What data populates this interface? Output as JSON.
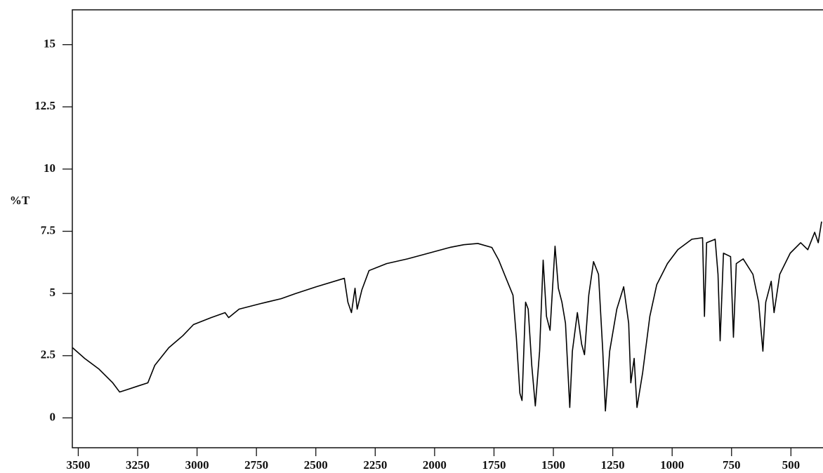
{
  "chart_data": {
    "type": "line",
    "ylabel": "%T",
    "xlim": [
      3525,
      365
    ],
    "ylim": [
      -1.2,
      16.4
    ],
    "xticks": [
      3500,
      3250,
      3000,
      2750,
      2500,
      2250,
      2000,
      1750,
      1500,
      1250,
      1000,
      750,
      500
    ],
    "yticks": [
      0,
      2.5,
      5,
      7.5,
      10,
      12.5,
      15
    ],
    "series": [
      {
        "color": "#000000",
        "x": [
          3524,
          3473,
          3414,
          3355,
          3326,
          3296,
          3252,
          3207,
          3178,
          3119,
          3060,
          3015,
          2941,
          2882,
          2867,
          2823,
          2734,
          2646,
          2587,
          2498,
          2380,
          2365,
          2350,
          2335,
          2326,
          2306,
          2276,
          2202,
          2114,
          2025,
          1936,
          1877,
          1818,
          1759,
          1730,
          1700,
          1670,
          1656,
          1641,
          1632,
          1617,
          1606,
          1591,
          1576,
          1558,
          1543,
          1529,
          1514,
          1493,
          1479,
          1464,
          1449,
          1431,
          1420,
          1399,
          1381,
          1369,
          1351,
          1331,
          1310,
          1292,
          1281,
          1263,
          1233,
          1204,
          1183,
          1174,
          1160,
          1148,
          1124,
          1094,
          1065,
          1020,
          976,
          917,
          872,
          864,
          855,
          819,
          807,
          798,
          784,
          754,
          742,
          730,
          701,
          660,
          636,
          618,
          606,
          583,
          571,
          547,
          503,
          459,
          429,
          400,
          385,
          371
        ],
        "values": [
          2.82,
          2.39,
          1.97,
          1.41,
          1.04,
          1.13,
          1.27,
          1.41,
          2.11,
          2.82,
          3.3,
          3.75,
          4.03,
          4.23,
          4.03,
          4.37,
          4.59,
          4.79,
          4.99,
          5.27,
          5.61,
          4.65,
          4.23,
          5.21,
          4.37,
          5.15,
          5.92,
          6.2,
          6.39,
          6.62,
          6.85,
          6.96,
          7.01,
          6.85,
          6.34,
          5.63,
          4.93,
          3.24,
          0.99,
          0.7,
          4.65,
          4.37,
          2.11,
          0.48,
          2.68,
          6.34,
          4.08,
          3.52,
          6.9,
          5.21,
          4.65,
          3.8,
          0.42,
          2.68,
          4.23,
          2.96,
          2.54,
          4.93,
          6.28,
          5.77,
          2.68,
          0.28,
          2.68,
          4.37,
          5.27,
          3.8,
          1.41,
          2.39,
          0.42,
          1.83,
          4.08,
          5.35,
          6.2,
          6.76,
          7.18,
          7.24,
          4.08,
          7.04,
          7.18,
          5.77,
          3.1,
          6.62,
          6.48,
          3.24,
          6.2,
          6.39,
          5.77,
          4.65,
          2.68,
          4.65,
          5.49,
          4.23,
          5.77,
          6.62,
          7.04,
          6.76,
          7.46,
          7.04,
          7.89
        ]
      }
    ]
  }
}
